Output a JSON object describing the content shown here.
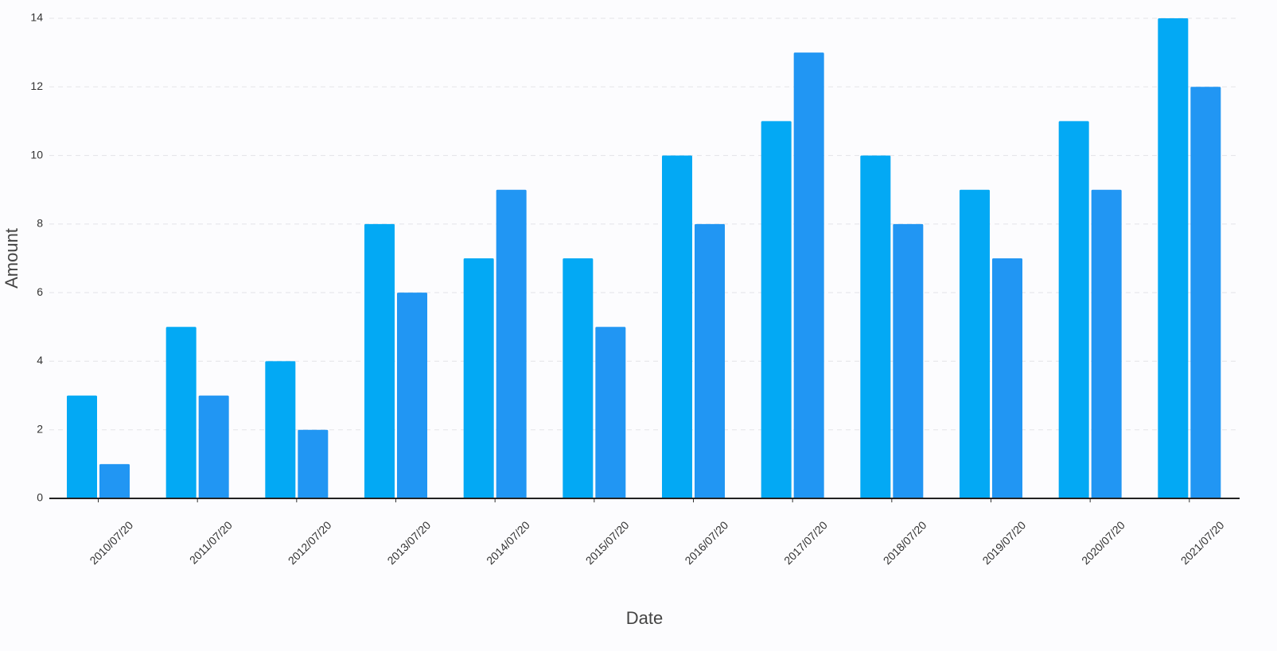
{
  "chart_data": {
    "type": "bar",
    "x_label": "Date",
    "y_label": "Amount",
    "categories": [
      "2010/07/20",
      "2011/07/20",
      "2012/07/20",
      "2013/07/20",
      "2014/07/20",
      "2015/07/20",
      "2016/07/20",
      "2017/07/20",
      "2018/07/20",
      "2019/07/20",
      "2020/07/20",
      "2021/07/20"
    ],
    "series": [
      {
        "color": "#03a9f4",
        "values": [
          3,
          5,
          4,
          8,
          7,
          7,
          10,
          11,
          10,
          9,
          11,
          14
        ]
      },
      {
        "color": "#2196f3",
        "values": [
          1,
          3,
          2,
          6,
          9,
          5,
          8,
          13,
          8,
          7,
          9,
          12
        ]
      }
    ],
    "ylim": [
      0,
      14
    ],
    "yticks": [
      0,
      2,
      4,
      6,
      8,
      10,
      12,
      14
    ],
    "grid": true
  }
}
